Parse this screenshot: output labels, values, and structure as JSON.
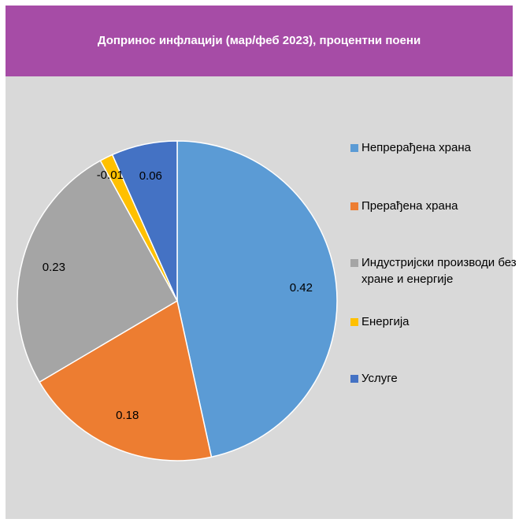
{
  "chart_data": {
    "type": "pie",
    "title": "Допринос инфлацији (мар/феб 2023), процентни поени",
    "categories": [
      "Непрерађена храна",
      "Прерађена храна",
      "Индустријски производи без хране и енергије",
      "Енергија",
      "Услуге"
    ],
    "values": [
      0.42,
      0.18,
      0.23,
      -0.01,
      0.06
    ],
    "value_labels": [
      "0.42",
      "0.18",
      "0.23",
      "-0.01",
      "0.06"
    ],
    "slice_shares": [
      0.4615,
      0.1978,
      0.2527,
      0.0132,
      0.0659
    ],
    "colors": [
      "#5b9bd5",
      "#ed7d31",
      "#a5a5a5",
      "#ffc000",
      "#4472c4"
    ],
    "legend_position": "right"
  }
}
